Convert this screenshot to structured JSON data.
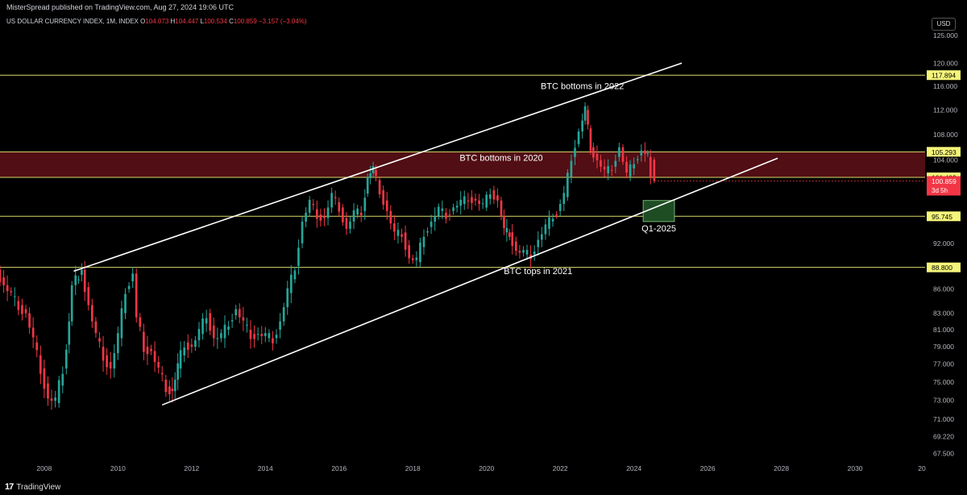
{
  "header": {
    "published": "MisterSpread published on TradingView.com, Aug 27, 2024 19:06 UTC"
  },
  "legend": {
    "symbol": "US DOLLAR CURRENCY INDEX, 1M, INDEX",
    "o_label": "O",
    "o_value": "104.073",
    "h_label": "H",
    "h_value": "104.447",
    "l_label": "L",
    "l_value": "100.534",
    "c_label": "C",
    "c_value": "100.859",
    "change": "−3.157 (−3.04%)"
  },
  "currency_button": "USD",
  "footer": {
    "brand": "TradingView",
    "mark": "17"
  },
  "colors": {
    "up": "#26a69a",
    "down": "#f23645",
    "level_line": "#d8db6a",
    "zone_fill": "#5a0f16",
    "target_box": "#1e4d24",
    "channel": "#ffffff",
    "price_badge": "#f23645",
    "level_badge": "#f5f57a"
  },
  "chart_data": {
    "type": "candlestick",
    "title": "",
    "xlabel": "",
    "ylabel": "",
    "x_ticks": [
      "2008",
      "2010",
      "2012",
      "2014",
      "2016",
      "2018",
      "2020",
      "2022",
      "2024",
      "2026",
      "2028",
      "2030",
      "20"
    ],
    "y_ticks": [
      "125.000",
      "120.000",
      "116.000",
      "112.000",
      "108.000",
      "104.000",
      "92.000",
      "86.000",
      "83.000",
      "81.000",
      "79.000",
      "77.000",
      "75.000",
      "73.000",
      "71.000",
      "69.220",
      "67.500"
    ],
    "ylim": [
      66.5,
      128
    ],
    "xlim": [
      2006.8,
      2031.9
    ],
    "log_scale": true,
    "grid": false,
    "current_price": {
      "value": 100.859,
      "label": "100.859",
      "countdown": "3d 5h"
    },
    "horizontal_levels": [
      {
        "value": 117.894,
        "label": "117.894"
      },
      {
        "value": 105.293,
        "label": "105.293"
      },
      {
        "value": 101.403,
        "label": "101.403"
      },
      {
        "value": 95.745,
        "label": "95.745"
      },
      {
        "value": 88.8,
        "label": "88.800"
      }
    ],
    "zone": {
      "from": 101.403,
      "to": 105.293
    },
    "channel_lines": [
      {
        "x1": 2008.8,
        "y1": 88.3,
        "x2": 2025.3,
        "y2": 120.0
      },
      {
        "x1": 2011.2,
        "y1": 72.5,
        "x2": 2027.9,
        "y2": 104.3
      }
    ],
    "target_box": {
      "x1": 2024.25,
      "x2": 2025.1,
      "y1": 95.0,
      "y2": 98.0,
      "label": "Q1-2025"
    },
    "annotations": [
      {
        "text": "BTC bottoms in 2022",
        "x": 2022.6,
        "y": 115.5
      },
      {
        "text": "BTC bottoms in 2020",
        "x": 2020.4,
        "y": 103.9
      },
      {
        "text": "BTC tops in 2021",
        "x": 2021.4,
        "y": 87.9
      }
    ],
    "series": [
      {
        "name": "",
        "points": [
          [
            2006.8,
            88.5
          ],
          [
            2007.0,
            86.5
          ],
          [
            2007.2,
            85.0
          ],
          [
            2007.4,
            84.0
          ],
          [
            2007.6,
            83.0
          ],
          [
            2007.8,
            79.5
          ],
          [
            2008.0,
            76.5
          ],
          [
            2008.2,
            73.2
          ],
          [
            2008.4,
            72.7
          ],
          [
            2008.6,
            76.5
          ],
          [
            2008.75,
            82.0
          ],
          [
            2008.85,
            86.5
          ],
          [
            2009.1,
            88.5
          ],
          [
            2009.3,
            84.0
          ],
          [
            2009.5,
            80.0
          ],
          [
            2009.7,
            78.0
          ],
          [
            2009.9,
            76.5
          ],
          [
            2010.1,
            80.0
          ],
          [
            2010.3,
            86.0
          ],
          [
            2010.5,
            88.0
          ],
          [
            2010.6,
            82.5
          ],
          [
            2010.8,
            79.0
          ],
          [
            2011.0,
            78.5
          ],
          [
            2011.2,
            76.0
          ],
          [
            2011.4,
            74.5
          ],
          [
            2011.55,
            74.0
          ],
          [
            2011.7,
            76.5
          ],
          [
            2011.9,
            79.5
          ],
          [
            2012.1,
            79.0
          ],
          [
            2012.3,
            80.5
          ],
          [
            2012.5,
            83.0
          ],
          [
            2012.7,
            80.0
          ],
          [
            2012.9,
            80.0
          ],
          [
            2013.1,
            82.0
          ],
          [
            2013.3,
            83.5
          ],
          [
            2013.5,
            81.5
          ],
          [
            2013.7,
            80.5
          ],
          [
            2013.9,
            80.5
          ],
          [
            2014.1,
            80.0
          ],
          [
            2014.3,
            80.0
          ],
          [
            2014.5,
            82.0
          ],
          [
            2014.7,
            85.5
          ],
          [
            2014.9,
            89.0
          ],
          [
            2015.1,
            95.0
          ],
          [
            2015.3,
            97.5
          ],
          [
            2015.5,
            96.0
          ],
          [
            2015.7,
            95.5
          ],
          [
            2015.9,
            98.5
          ],
          [
            2016.1,
            97.0
          ],
          [
            2016.3,
            94.0
          ],
          [
            2016.5,
            96.0
          ],
          [
            2016.7,
            96.5
          ],
          [
            2016.85,
            101.5
          ],
          [
            2017.0,
            102.5
          ],
          [
            2017.2,
            99.5
          ],
          [
            2017.4,
            96.5
          ],
          [
            2017.6,
            93.0
          ],
          [
            2017.8,
            93.5
          ],
          [
            2018.0,
            90.0
          ],
          [
            2018.2,
            89.5
          ],
          [
            2018.4,
            93.5
          ],
          [
            2018.6,
            95.0
          ],
          [
            2018.8,
            96.5
          ],
          [
            2019.0,
            96.0
          ],
          [
            2019.2,
            97.0
          ],
          [
            2019.4,
            97.5
          ],
          [
            2019.6,
            98.5
          ],
          [
            2019.8,
            98.0
          ],
          [
            2020.0,
            97.0
          ],
          [
            2020.2,
            99.5
          ],
          [
            2020.4,
            98.0
          ],
          [
            2020.55,
            93.5
          ],
          [
            2020.7,
            93.5
          ],
          [
            2020.9,
            91.0
          ],
          [
            2021.1,
            90.5
          ],
          [
            2021.3,
            90.5
          ],
          [
            2021.5,
            92.5
          ],
          [
            2021.7,
            94.0
          ],
          [
            2021.9,
            96.0
          ],
          [
            2022.0,
            96.5
          ],
          [
            2022.2,
            98.5
          ],
          [
            2022.4,
            104.5
          ],
          [
            2022.6,
            108.5
          ],
          [
            2022.75,
            112.0
          ],
          [
            2022.9,
            106.0
          ],
          [
            2023.1,
            104.0
          ],
          [
            2023.3,
            102.0
          ],
          [
            2023.5,
            103.0
          ],
          [
            2023.7,
            106.0
          ],
          [
            2023.9,
            101.5
          ],
          [
            2024.1,
            104.0
          ],
          [
            2024.3,
            105.5
          ],
          [
            2024.45,
            104.5
          ],
          [
            2024.55,
            100.9
          ]
        ]
      }
    ]
  }
}
